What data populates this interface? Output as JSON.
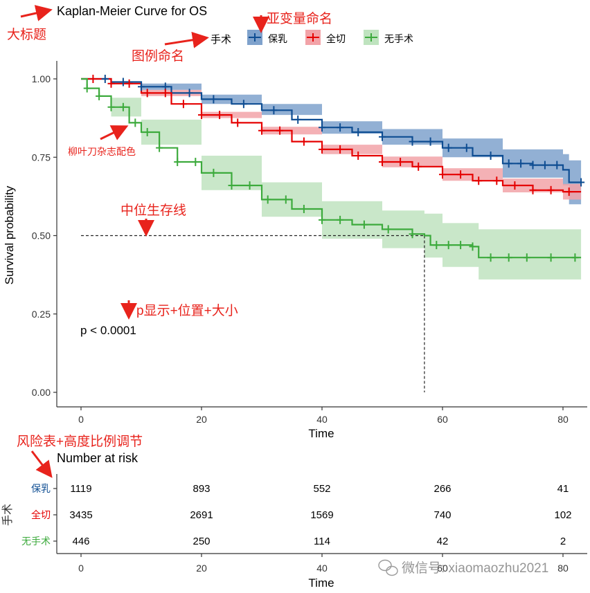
{
  "chart_data": {
    "type": "line",
    "subtype": "kaplan-meier",
    "title": "Kaplan-Meier Curve for OS",
    "xlabel": "Time",
    "ylabel": "Survival probability",
    "xlim": [
      0,
      83
    ],
    "ylim": [
      0,
      1
    ],
    "x_ticks": [
      0,
      20,
      40,
      60,
      80
    ],
    "y_ticks": [
      "0.00",
      "0.25",
      "0.50",
      "0.75",
      "1.00"
    ],
    "legend_title": "手术",
    "legend_position": "top",
    "pvalue_label": "p < 0.0001",
    "median_line": {
      "y": 0.5,
      "x": 57
    },
    "series": [
      {
        "name": "保乳",
        "color": "#0e4d92",
        "band_color": "#7fa2cc",
        "points": [
          [
            0,
            1.0
          ],
          [
            5,
            0.99
          ],
          [
            10,
            0.975
          ],
          [
            15,
            0.955
          ],
          [
            20,
            0.935
          ],
          [
            25,
            0.92
          ],
          [
            30,
            0.9
          ],
          [
            35,
            0.87
          ],
          [
            40,
            0.845
          ],
          [
            45,
            0.83
          ],
          [
            50,
            0.815
          ],
          [
            55,
            0.8
          ],
          [
            60,
            0.78
          ],
          [
            65,
            0.755
          ],
          [
            70,
            0.73
          ],
          [
            75,
            0.725
          ],
          [
            80,
            0.71
          ],
          [
            81,
            0.67
          ],
          [
            83,
            0.67
          ]
        ],
        "band": [
          [
            0,
            1.0,
            1.0
          ],
          [
            10,
            0.965,
            0.985
          ],
          [
            20,
            0.92,
            0.95
          ],
          [
            30,
            0.885,
            0.92
          ],
          [
            40,
            0.825,
            0.865
          ],
          [
            50,
            0.79,
            0.84
          ],
          [
            60,
            0.75,
            0.81
          ],
          [
            70,
            0.685,
            0.775
          ],
          [
            80,
            0.66,
            0.76
          ],
          [
            81,
            0.6,
            0.74
          ],
          [
            83,
            0.6,
            0.74
          ]
        ],
        "censor_x": [
          4,
          7,
          10,
          14,
          18,
          22,
          27,
          32,
          36,
          40,
          43,
          46,
          50,
          55,
          58,
          61,
          64,
          68,
          71,
          73,
          75,
          77,
          79,
          83
        ]
      },
      {
        "name": "全切",
        "color": "#e50000",
        "band_color": "#f2a3a8",
        "points": [
          [
            0,
            1.0
          ],
          [
            5,
            0.985
          ],
          [
            10,
            0.955
          ],
          [
            15,
            0.92
          ],
          [
            20,
            0.885
          ],
          [
            25,
            0.86
          ],
          [
            30,
            0.835
          ],
          [
            35,
            0.8
          ],
          [
            40,
            0.775
          ],
          [
            45,
            0.755
          ],
          [
            50,
            0.735
          ],
          [
            55,
            0.72
          ],
          [
            60,
            0.695
          ],
          [
            65,
            0.675
          ],
          [
            70,
            0.66
          ],
          [
            75,
            0.645
          ],
          [
            80,
            0.64
          ],
          [
            83,
            0.64
          ]
        ],
        "band": [
          [
            0,
            1.0,
            1.0
          ],
          [
            10,
            0.945,
            0.965
          ],
          [
            20,
            0.875,
            0.895
          ],
          [
            30,
            0.823,
            0.847
          ],
          [
            40,
            0.76,
            0.79
          ],
          [
            50,
            0.718,
            0.752
          ],
          [
            60,
            0.675,
            0.715
          ],
          [
            70,
            0.638,
            0.682
          ],
          [
            80,
            0.615,
            0.665
          ],
          [
            83,
            0.6,
            0.68
          ]
        ],
        "censor_x": [
          2,
          5,
          8,
          11,
          14,
          17,
          20,
          23,
          26,
          30,
          33,
          37,
          40,
          43,
          46,
          50,
          53,
          56,
          60,
          63,
          66,
          69,
          72,
          75,
          78,
          81
        ]
      },
      {
        "name": "无手术",
        "color": "#3caa3c",
        "band_color": "#bfe3bf",
        "points": [
          [
            0,
            1.0
          ],
          [
            1,
            0.97
          ],
          [
            3,
            0.945
          ],
          [
            5,
            0.91
          ],
          [
            8,
            0.86
          ],
          [
            10,
            0.83
          ],
          [
            13,
            0.78
          ],
          [
            16,
            0.735
          ],
          [
            20,
            0.7
          ],
          [
            25,
            0.66
          ],
          [
            30,
            0.615
          ],
          [
            35,
            0.585
          ],
          [
            40,
            0.55
          ],
          [
            45,
            0.535
          ],
          [
            50,
            0.52
          ],
          [
            55,
            0.505
          ],
          [
            57,
            0.5
          ],
          [
            58,
            0.47
          ],
          [
            60,
            0.47
          ],
          [
            65,
            0.465
          ],
          [
            66,
            0.43
          ],
          [
            70,
            0.43
          ],
          [
            83,
            0.43
          ]
        ],
        "band": [
          [
            0,
            1.0,
            1.0
          ],
          [
            5,
            0.88,
            0.94
          ],
          [
            10,
            0.79,
            0.87
          ],
          [
            20,
            0.645,
            0.755
          ],
          [
            30,
            0.56,
            0.67
          ],
          [
            40,
            0.49,
            0.61
          ],
          [
            50,
            0.46,
            0.58
          ],
          [
            57,
            0.43,
            0.57
          ],
          [
            60,
            0.4,
            0.54
          ],
          [
            66,
            0.36,
            0.52
          ],
          [
            83,
            0.36,
            0.52
          ]
        ],
        "censor_x": [
          1,
          3,
          5,
          7,
          9,
          11,
          13,
          16,
          19,
          22,
          25,
          28,
          31,
          34,
          37,
          40,
          43,
          47,
          51,
          55,
          59,
          61,
          63,
          65,
          68,
          71,
          74,
          78,
          82
        ]
      }
    ],
    "risk_table": {
      "title": "Number at risk",
      "ylabel": "手术",
      "xlabel": "Time",
      "times": [
        0,
        20,
        40,
        60,
        80
      ],
      "rows": [
        {
          "label": "保乳",
          "color": "#0e4d92",
          "values": [
            "1119",
            "893",
            "552",
            "266",
            "41"
          ]
        },
        {
          "label": "全切",
          "color": "#e50000",
          "values": [
            "3435",
            "2691",
            "1569",
            "740",
            "102"
          ]
        },
        {
          "label": "无手术",
          "color": "#3caa3c",
          "values": [
            "446",
            "250",
            "114",
            "42",
            "2"
          ]
        }
      ]
    }
  },
  "annotations": {
    "main_title": "大标题",
    "subgroup_naming": "亚变量命名",
    "legend_naming": "图例命名",
    "palette": "柳叶刀杂志配色",
    "median_survival": "中位生存线",
    "pvalue_display": "p显示+位置+大小",
    "risk_table_adjust": "风险表+高度比例调节"
  },
  "watermark": "微信号: xiaomaozhu2021",
  "colors": {
    "annotation": "#e8231c",
    "axis": "#333333"
  }
}
